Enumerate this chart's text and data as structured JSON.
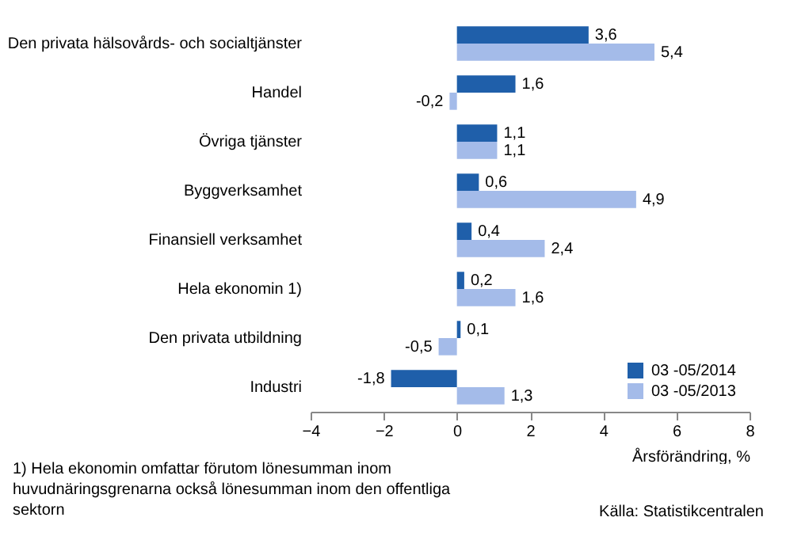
{
  "chart_data": {
    "type": "bar",
    "orientation": "horizontal",
    "xlabel": "Årsförändring, %",
    "categories": [
      "Den privata hälsovårds- och socialtjänster",
      "Handel",
      "Övriga tjänster",
      "Byggverksamhet",
      "Finansiell verksamhet",
      "Hela ekonomin 1)",
      "Den privata utbildning",
      "Industri"
    ],
    "series": [
      {
        "name": "03 -05/2014",
        "color": "#1f5faa",
        "values": [
          3.6,
          1.6,
          1.1,
          0.6,
          0.4,
          0.2,
          0.1,
          -1.8
        ],
        "value_labels": [
          "3,6",
          "1,6",
          "1,1",
          "0,6",
          "0,4",
          "0,2",
          "0,1",
          "-1,8"
        ]
      },
      {
        "name": "03 -05/2013",
        "color": "#a4bbe9",
        "values": [
          5.4,
          -0.2,
          1.1,
          4.9,
          2.4,
          1.6,
          -0.5,
          1.3
        ],
        "value_labels": [
          "5,4",
          "-0,2",
          "1,1",
          "4,9",
          "2,4",
          "1,6",
          "-0,5",
          "1,3"
        ]
      }
    ],
    "xlim": [
      -4,
      8
    ],
    "xticks": [
      -4,
      -2,
      0,
      2,
      4,
      6,
      8
    ],
    "legend": "bottom right",
    "annotations": [
      "1) Hela ekonomin omfattar förutom lönesumman inom huvudnäringsgrenarna också lönesumman inom den offentliga sektorn",
      "Källa: Statistikcentralen"
    ]
  }
}
